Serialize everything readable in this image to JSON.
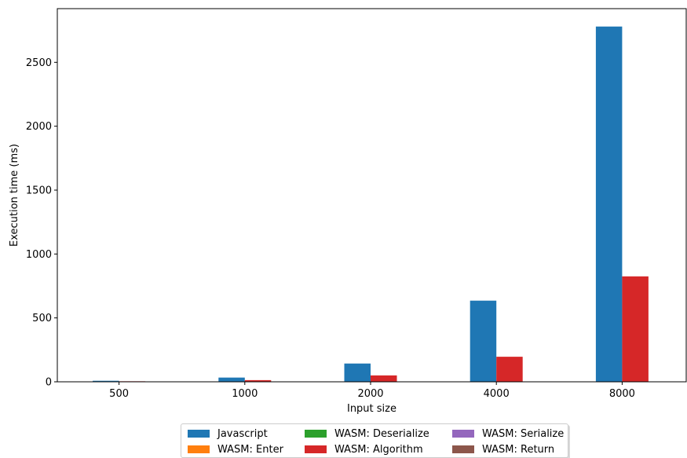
{
  "chart_data": {
    "type": "bar",
    "xlabel": "Input size",
    "ylabel": "Execution time (ms)",
    "categories": [
      "500",
      "1000",
      "2000",
      "4000",
      "8000"
    ],
    "ylim": [
      0,
      2920
    ],
    "yticks": [
      0,
      500,
      1000,
      1500,
      2000,
      2500
    ],
    "grid": false,
    "legend_position": "below",
    "series": [
      {
        "name": "Javascript",
        "color": "#1f77b4",
        "values": [
          8,
          33,
          143,
          635,
          2780
        ]
      },
      {
        "name": "WASM: Enter",
        "color": "#ff7f0e",
        "values": [
          0,
          0,
          0,
          0,
          0
        ]
      },
      {
        "name": "WASM: Deserialize",
        "color": "#2ca02c",
        "values": [
          0,
          0,
          0,
          0,
          0
        ]
      },
      {
        "name": "WASM: Algorithm",
        "color": "#d62728",
        "values": [
          4,
          13,
          50,
          196,
          825
        ]
      },
      {
        "name": "WASM: Serialize",
        "color": "#9467bd",
        "values": [
          0,
          0,
          0,
          0,
          0
        ]
      },
      {
        "name": "WASM: Return",
        "color": "#8c564b",
        "values": [
          0,
          0,
          0,
          0,
          0
        ]
      }
    ]
  }
}
